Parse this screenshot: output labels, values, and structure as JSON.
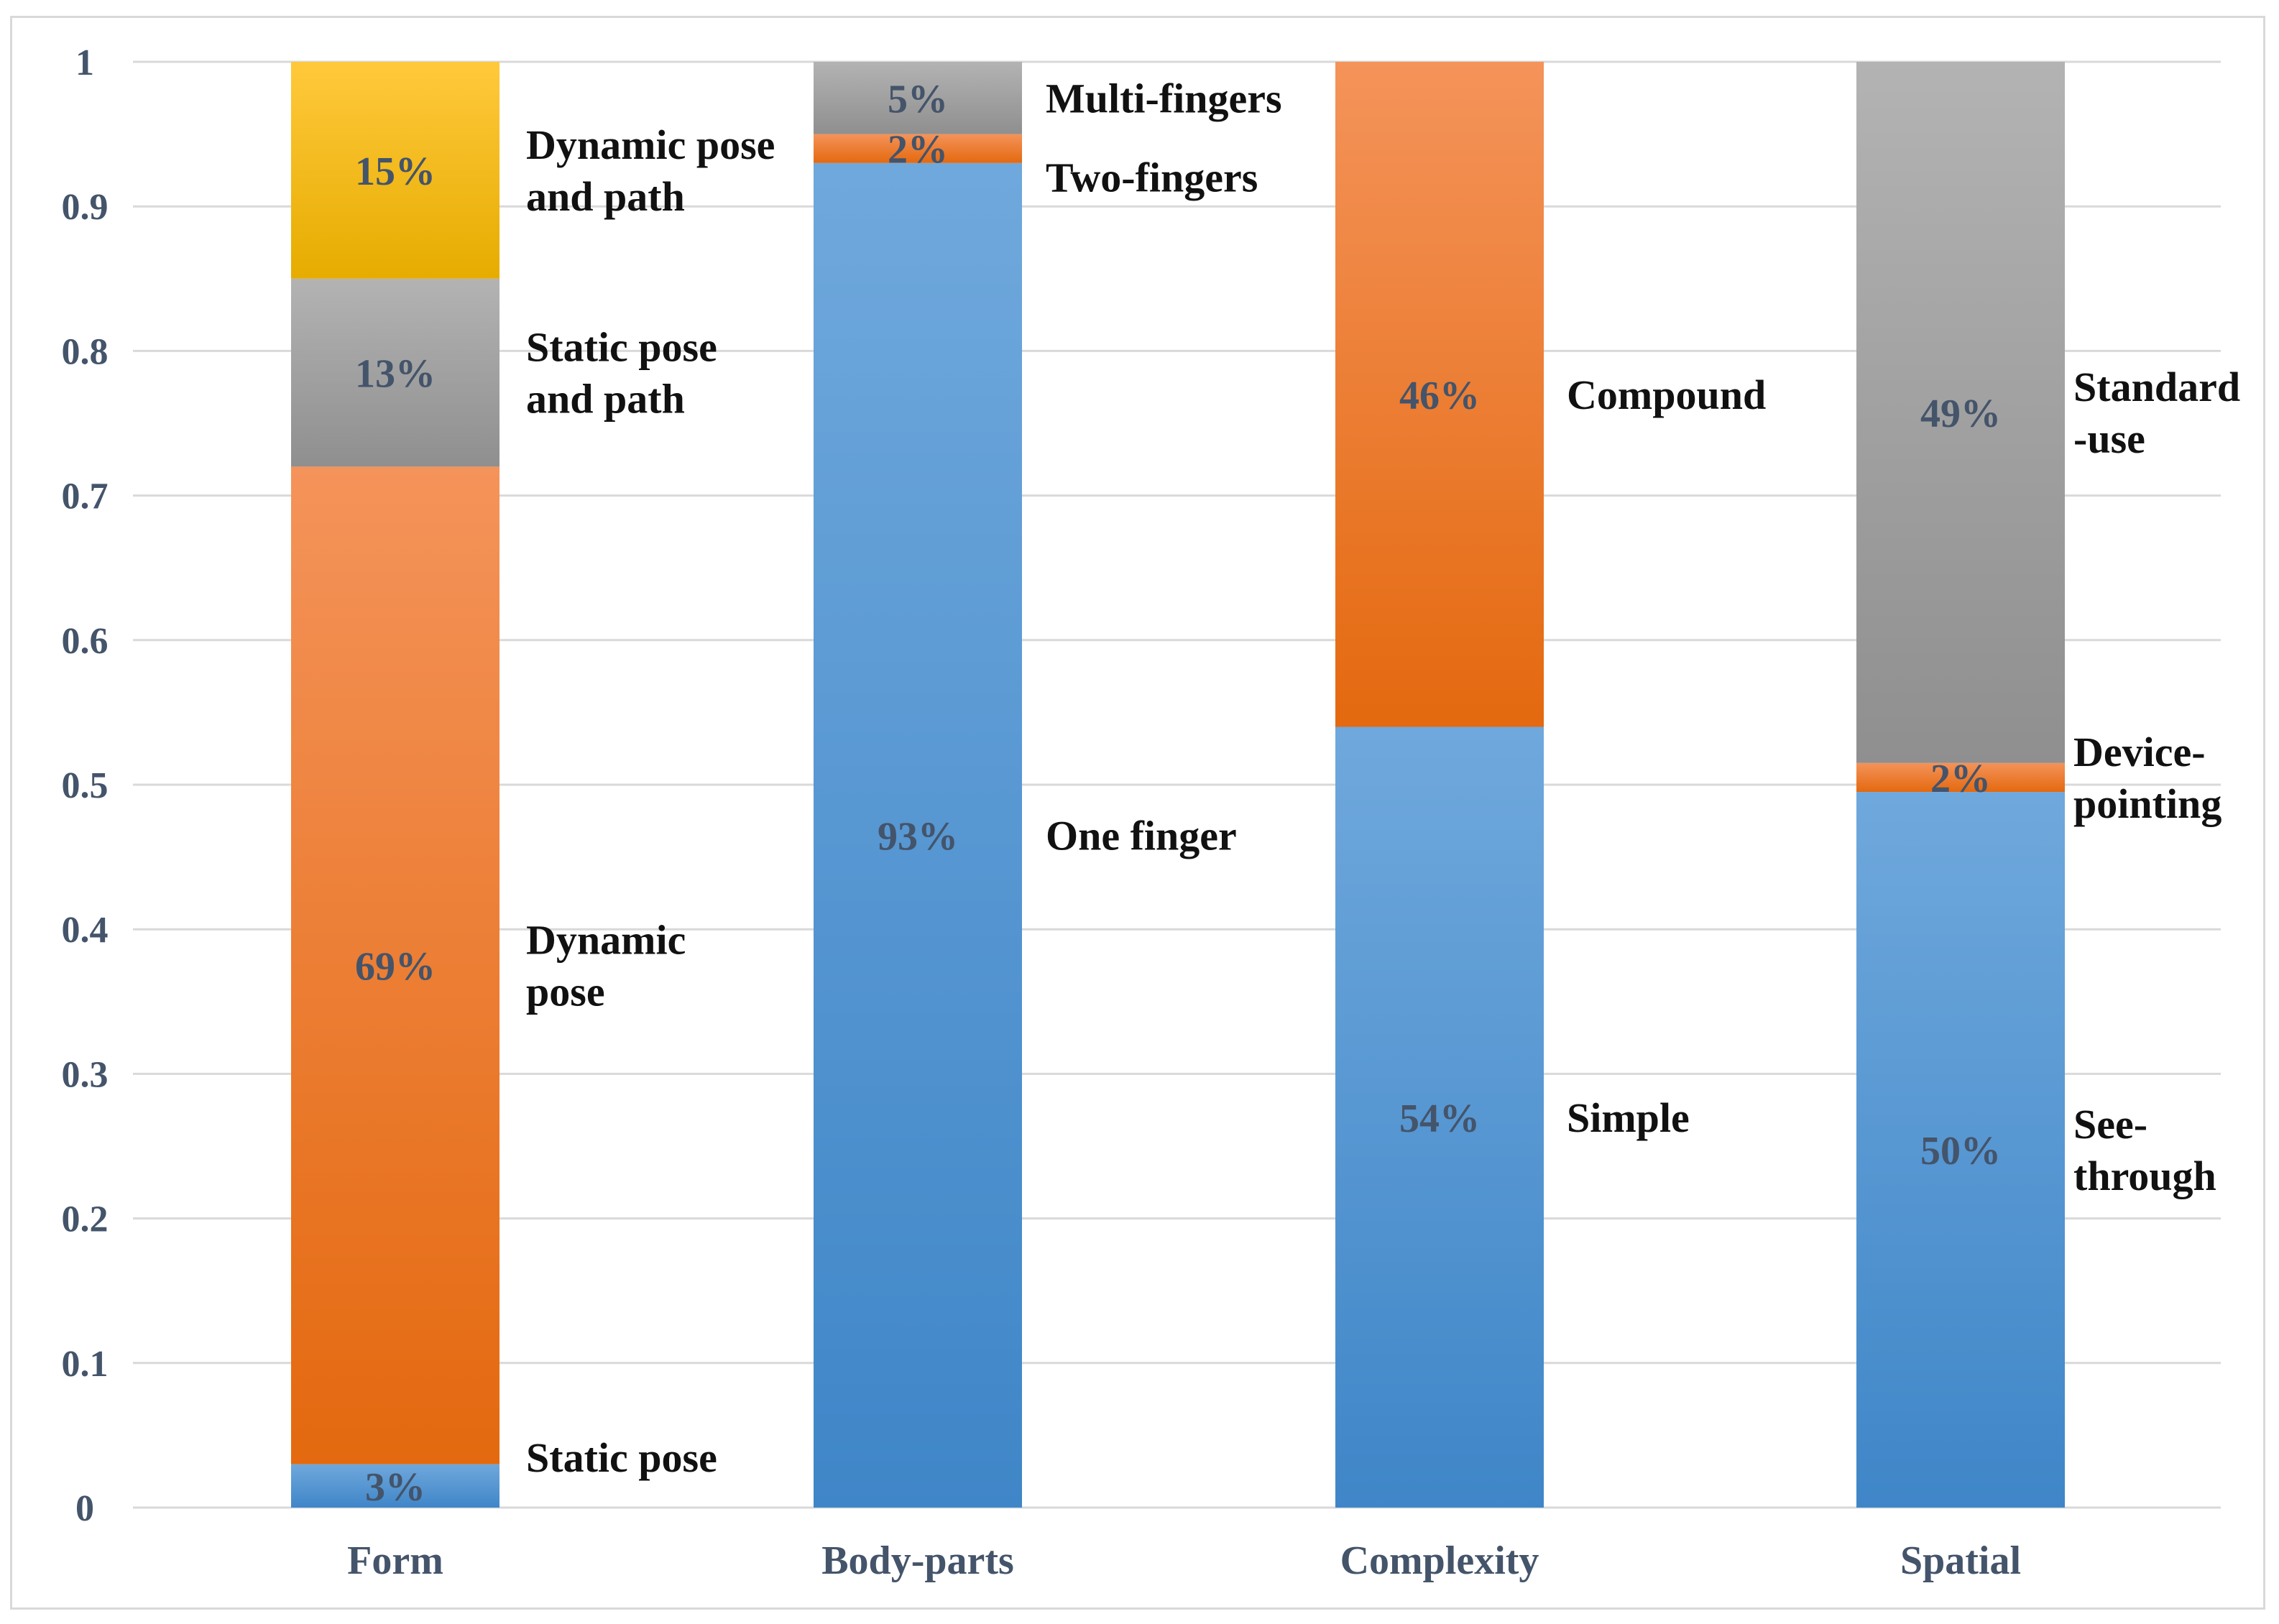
{
  "chart_data": {
    "type": "bar",
    "stacked": true,
    "title": "",
    "xlabel": "",
    "ylabel": "",
    "ylim": [
      0,
      1
    ],
    "yticks": [
      "0",
      "0.1",
      "0.2",
      "0.3",
      "0.4",
      "0.5",
      "0.6",
      "0.7",
      "0.8",
      "0.9",
      "1"
    ],
    "grid": true,
    "categories": [
      "Form",
      "Body-parts",
      "Complexity",
      "Spatial"
    ],
    "stacks": [
      {
        "category": "Form",
        "segments": [
          {
            "name": "Static pose",
            "value": 0.03,
            "label": "3%",
            "color": "blue",
            "name_lines": [
              "Static pose"
            ]
          },
          {
            "name": "Dynamic pose",
            "value": 0.69,
            "label": "69%",
            "color": "orange",
            "name_lines": [
              "Dynamic",
              "pose"
            ]
          },
          {
            "name": "Static pose and path",
            "value": 0.13,
            "label": "13%",
            "color": "gray",
            "name_lines": [
              "Static pose",
              "and path"
            ]
          },
          {
            "name": "Dynamic pose and path",
            "value": 0.15,
            "label": "15%",
            "color": "yellow",
            "name_lines": [
              "Dynamic pose",
              "and path"
            ]
          }
        ]
      },
      {
        "category": "Body-parts",
        "segments": [
          {
            "name": "One finger",
            "value": 0.93,
            "label": "93%",
            "color": "blue",
            "name_lines": [
              "One finger"
            ]
          },
          {
            "name": "Two-fingers",
            "value": 0.02,
            "label": "2%",
            "color": "orange",
            "name_lines": [
              "Two-fingers"
            ]
          },
          {
            "name": "Multi-fingers",
            "value": 0.05,
            "label": "5%",
            "color": "gray",
            "name_lines": [
              "Multi-fingers"
            ]
          }
        ]
      },
      {
        "category": "Complexity",
        "segments": [
          {
            "name": "Simple",
            "value": 0.54,
            "label": "54%",
            "color": "blue",
            "name_lines": [
              "Simple"
            ]
          },
          {
            "name": "Compound",
            "value": 0.46,
            "label": "46%",
            "color": "orange",
            "name_lines": [
              "Compound"
            ]
          }
        ]
      },
      {
        "category": "Spatial",
        "segments": [
          {
            "name": "See-through",
            "value": 0.495,
            "label": "50%",
            "color": "blue",
            "name_lines": [
              "See-",
              "through"
            ]
          },
          {
            "name": "Device-pointing",
            "value": 0.02,
            "label": "2%",
            "color": "orange",
            "name_lines": [
              "Device-",
              "pointing"
            ]
          },
          {
            "name": "Standard-use",
            "value": 0.485,
            "label": "49%",
            "color": "gray",
            "name_lines": [
              "Standard",
              "-use"
            ]
          }
        ]
      }
    ],
    "palette": {
      "blue": [
        "#6fa8dc",
        "#3f86c8"
      ],
      "orange": [
        "#f4935a",
        "#e4690f"
      ],
      "gray": [
        "#b3b3b3",
        "#8f8f8f"
      ],
      "yellow": [
        "#ffc93c",
        "#e6ac00"
      ],
      "grid": "#d9d9d9",
      "axis_text": "#44546a",
      "label_text": "#111111"
    }
  }
}
